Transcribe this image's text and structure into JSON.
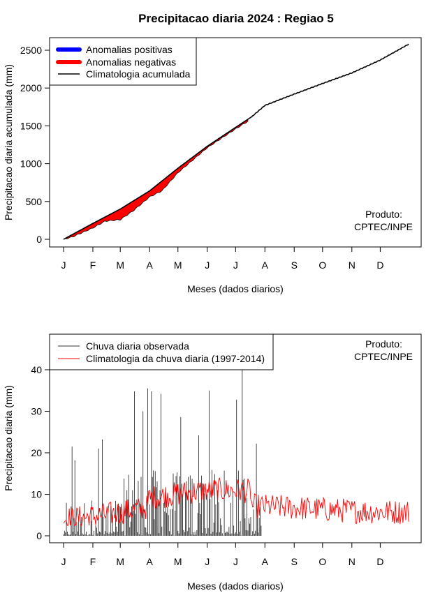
{
  "title": "Precipitacao diaria 2024 : Regiao 5",
  "producer_label": "Produto:",
  "producer_name": "CPTEC/INPE",
  "colors": {
    "positive": "#0000ff",
    "negative": "#ff0000",
    "observed": "#333333",
    "climatology_daily": "#ff0000",
    "climatology_acc": "#000000"
  },
  "chart_data": [
    {
      "type": "area",
      "xlabel": "Meses (dados diarios)",
      "ylabel": "Precipitacao diaria acumulada (mm)",
      "x_ticks": [
        "J",
        "F",
        "M",
        "A",
        "M",
        "J",
        "J",
        "A",
        "S",
        "O",
        "N",
        "D"
      ],
      "x_tick_days": [
        1,
        32,
        61,
        92,
        122,
        153,
        183,
        214,
        245,
        275,
        306,
        336
      ],
      "y_ticks": [
        0,
        500,
        1000,
        1500,
        2000,
        2500
      ],
      "xlim": [
        1,
        366
      ],
      "ylim": [
        0,
        2600
      ],
      "legend": [
        "Anomalias positivas",
        "Anomalias negativas",
        "Climatologia acumulada"
      ],
      "climatology_days": [
        1,
        32,
        61,
        92,
        122,
        153,
        183,
        200,
        214,
        245,
        275,
        306,
        336,
        366
      ],
      "climatology_values": [
        0,
        210,
        400,
        640,
        940,
        1230,
        1480,
        1620,
        1770,
        1920,
        2060,
        2200,
        2370,
        2580
      ],
      "observed_days": [
        1,
        10,
        32,
        45,
        61,
        75,
        92,
        105,
        122,
        153,
        183,
        196
      ],
      "observed_values": [
        0,
        30,
        150,
        240,
        260,
        380,
        560,
        640,
        880,
        1210,
        1460,
        1560
      ]
    },
    {
      "type": "bar",
      "xlabel": "Meses (dados diarios)",
      "ylabel": "Precipitacao diaria (mm)",
      "x_ticks": [
        "J",
        "F",
        "M",
        "A",
        "M",
        "J",
        "J",
        "A",
        "S",
        "O",
        "N",
        "D"
      ],
      "x_tick_days": [
        1,
        32,
        61,
        92,
        122,
        153,
        183,
        214,
        245,
        275,
        306,
        336
      ],
      "y_ticks": [
        0,
        10,
        20,
        30,
        40
      ],
      "xlim": [
        1,
        366
      ],
      "ylim": [
        -2,
        48
      ],
      "legend": [
        "Chuva diaria observada",
        "Climatologia da chuva diaria (1997-2014)"
      ],
      "observed_last_day": 210,
      "observed_peaks": [
        {
          "day": 10,
          "value": 21.5
        },
        {
          "day": 13,
          "value": 18.2
        },
        {
          "day": 38,
          "value": 21
        },
        {
          "day": 42,
          "value": 23.2
        },
        {
          "day": 76,
          "value": 34.8
        },
        {
          "day": 85,
          "value": 30
        },
        {
          "day": 90,
          "value": 35.5
        },
        {
          "day": 94,
          "value": 34.8
        },
        {
          "day": 104,
          "value": 34.2
        },
        {
          "day": 125,
          "value": 28.6
        },
        {
          "day": 144,
          "value": 24.2
        },
        {
          "day": 155,
          "value": 35
        },
        {
          "day": 184,
          "value": 32.8
        },
        {
          "day": 190,
          "value": 40
        },
        {
          "day": 205,
          "value": 22.2
        }
      ],
      "climatology_mean": 6.5,
      "climatology_range": [
        2.5,
        15
      ]
    }
  ]
}
